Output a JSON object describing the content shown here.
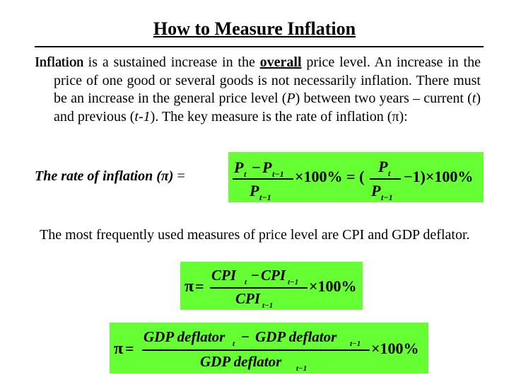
{
  "slide": {
    "title": "How to Measure Inflation",
    "para1": {
      "term": "Inflation",
      "text_a": " is a sustained increase in the ",
      "overall": "overall",
      "text_b": " price level. An increase in the price of one good or several goods is not necessarily inflation. There must be an increase in the general price level (",
      "p": "P",
      "text_c": ") between two years – current (",
      "t": "t",
      "text_d": ") and previous (",
      "t_prev": "t",
      "text_e": "-",
      "one": "1",
      "text_f": "). The key measure is the rate of inflation (π):"
    },
    "rate_label": "The rate of inflation (π)",
    "rate_eq": " =",
    "para2": "The most frequently used measures of price level are CPI and GDP deflator."
  },
  "formulas": {
    "f1": {
      "num_left": "P",
      "sub_t": "t",
      "minus": "−",
      "sub_t1": "t−1",
      "times100": "×100% = (",
      "minus1": "−1)×100%"
    },
    "f2": {
      "pi": "π",
      "eq": "=",
      "cpi": "CPI",
      "sub_t": "t",
      "sub_t1": "t−1",
      "minus": "−",
      "times100": "×100%"
    },
    "f3": {
      "pi": "π",
      "eq": "=",
      "gdp": "GDP deflator",
      "sub_t": "t",
      "sub_t1": "t−1",
      "minus": "−",
      "times100": "×100%"
    }
  },
  "colors": {
    "formula_bg": "#66ff33"
  }
}
